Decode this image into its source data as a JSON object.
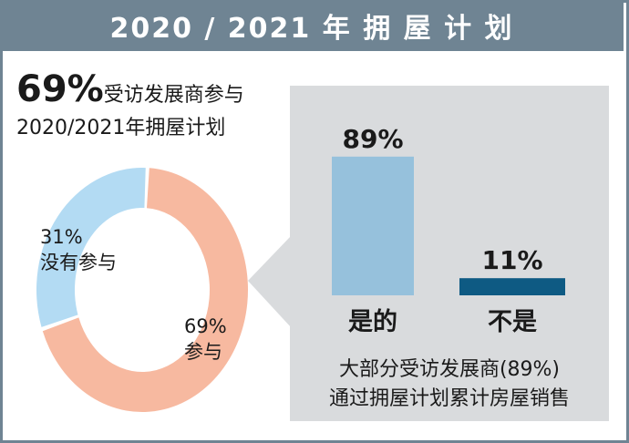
{
  "banner": {
    "title": "2020 / 2021 年 拥 屋 计 划"
  },
  "headline": {
    "percent": "69%",
    "line1": "受访发展商参与",
    "line2": "2020/2021年拥屋计划"
  },
  "colors": {
    "banner": "#6f8493",
    "donut_participate": "#f7b9a0",
    "donut_not": "#b3dbf3",
    "bar_yes": "#96c1dc",
    "bar_no": "#0e5a83",
    "panel": "#d9dbdd"
  },
  "caption": {
    "line1": "大部分受访发展商(89%)",
    "line2": "通过拥屋计划累计房屋销售"
  },
  "chart_data": [
    {
      "type": "pie",
      "donut": true,
      "slices": [
        {
          "label": "参与",
          "value": 69,
          "value_label": "69%"
        },
        {
          "label": "没有参与",
          "value": 31,
          "value_label": "31%"
        }
      ]
    },
    {
      "type": "bar",
      "categories": [
        "是的",
        "不是"
      ],
      "values": [
        89,
        11
      ],
      "value_labels": [
        "89%",
        "11%"
      ],
      "ylim": [
        0,
        100
      ]
    }
  ]
}
